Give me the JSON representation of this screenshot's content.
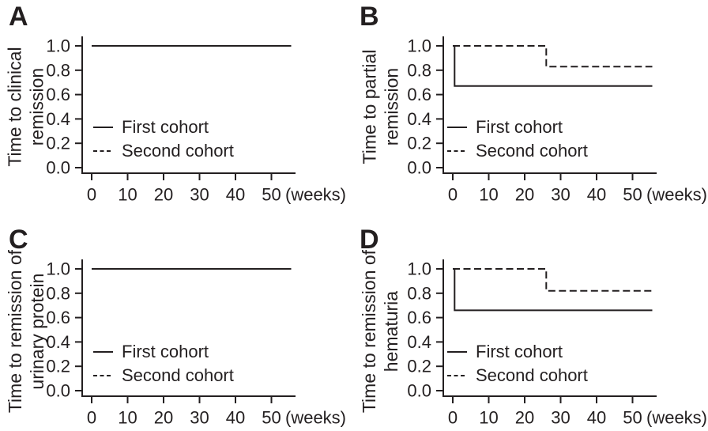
{
  "figure": {
    "background": "#ffffff",
    "line_color": "#231f20",
    "text_color": "#231f20"
  },
  "chart_data": [
    {
      "type": "line",
      "step": true,
      "panel_label": "A",
      "ylabel_lines": [
        "Time to clinical",
        "remission"
      ],
      "ylabel": "Time to clinical remission",
      "xlabel": "",
      "x_unit": "(weeks)",
      "x_ticks": [
        "0",
        "10",
        "20",
        "30",
        "40",
        "50"
      ],
      "y_ticks": [
        "0.0",
        "0.2",
        "0.4",
        "0.6",
        "0.8",
        "1.0"
      ],
      "xlim": [
        0,
        56
      ],
      "ylim": [
        0,
        1
      ],
      "grid": false,
      "legend_position": "inside-left",
      "legend": [
        {
          "label": "First cohort",
          "style": "solid"
        },
        {
          "label": "Second cohort",
          "style": "dashed"
        }
      ],
      "series": [
        {
          "name": "First cohort",
          "style": "solid",
          "steps": [
            [
              0,
              1.0
            ],
            [
              55.5,
              1.0
            ]
          ]
        },
        {
          "name": "Second cohort",
          "style": "dashed",
          "steps": [
            [
              0,
              1.0
            ],
            [
              55.5,
              1.0
            ]
          ]
        }
      ]
    },
    {
      "type": "line",
      "step": true,
      "panel_label": "B",
      "ylabel_lines": [
        "Time to partial",
        "remission"
      ],
      "ylabel": "Time to partial remission",
      "xlabel": "",
      "x_unit": "(weeks)",
      "x_ticks": [
        "0",
        "10",
        "20",
        "30",
        "40",
        "50"
      ],
      "y_ticks": [
        "0.0",
        "0.2",
        "0.4",
        "0.6",
        "0.8",
        "1.0"
      ],
      "xlim": [
        0,
        56
      ],
      "ylim": [
        0,
        1
      ],
      "grid": false,
      "legend_position": "inside-left",
      "legend": [
        {
          "label": "First cohort",
          "style": "solid"
        },
        {
          "label": "Second cohort",
          "style": "dashed"
        }
      ],
      "series": [
        {
          "name": "First cohort",
          "style": "solid",
          "steps": [
            [
              0,
              1.0
            ],
            [
              0.5,
              1.0
            ],
            [
              0.5,
              0.67
            ],
            [
              55.5,
              0.67
            ]
          ]
        },
        {
          "name": "Second cohort",
          "style": "dashed",
          "steps": [
            [
              0,
              1.0
            ],
            [
              26,
              1.0
            ],
            [
              26,
              0.83
            ],
            [
              55.5,
              0.83
            ]
          ]
        }
      ]
    },
    {
      "type": "line",
      "step": true,
      "panel_label": "C",
      "ylabel_lines": [
        "Time to remission of",
        "urinary protein"
      ],
      "ylabel": "Time to remission of urinary protein",
      "xlabel": "",
      "x_unit": "(weeks)",
      "x_ticks": [
        "0",
        "10",
        "20",
        "30",
        "40",
        "50"
      ],
      "y_ticks": [
        "0.0",
        "0.2",
        "0.4",
        "0.6",
        "0.8",
        "1.0"
      ],
      "xlim": [
        0,
        56
      ],
      "ylim": [
        0,
        1
      ],
      "grid": false,
      "legend_position": "inside-left",
      "legend": [
        {
          "label": "First cohort",
          "style": "solid"
        },
        {
          "label": "Second cohort",
          "style": "dashed"
        }
      ],
      "series": [
        {
          "name": "First cohort",
          "style": "solid",
          "steps": [
            [
              0,
              1.0
            ],
            [
              55.5,
              1.0
            ]
          ]
        },
        {
          "name": "Second cohort",
          "style": "dashed",
          "steps": [
            [
              0,
              1.0
            ],
            [
              55.5,
              1.0
            ]
          ]
        }
      ]
    },
    {
      "type": "line",
      "step": true,
      "panel_label": "D",
      "ylabel_lines": [
        "Time to remission of",
        "hematuria"
      ],
      "ylabel": "Time to remission of hematuria",
      "xlabel": "",
      "x_unit": "(weeks)",
      "x_ticks": [
        "0",
        "10",
        "20",
        "30",
        "40",
        "50"
      ],
      "y_ticks": [
        "0.0",
        "0.2",
        "0.4",
        "0.6",
        "0.8",
        "1.0"
      ],
      "xlim": [
        0,
        56
      ],
      "ylim": [
        0,
        1
      ],
      "grid": false,
      "legend_position": "inside-left",
      "legend": [
        {
          "label": "First cohort",
          "style": "solid"
        },
        {
          "label": "Second cohort",
          "style": "dashed"
        }
      ],
      "series": [
        {
          "name": "First cohort",
          "style": "solid",
          "steps": [
            [
              0,
              1.0
            ],
            [
              0.5,
              1.0
            ],
            [
              0.5,
              0.66
            ],
            [
              55.5,
              0.66
            ]
          ]
        },
        {
          "name": "Second cohort",
          "style": "dashed",
          "steps": [
            [
              0,
              1.0
            ],
            [
              26,
              1.0
            ],
            [
              26,
              0.82
            ],
            [
              55.5,
              0.82
            ]
          ]
        }
      ]
    }
  ]
}
